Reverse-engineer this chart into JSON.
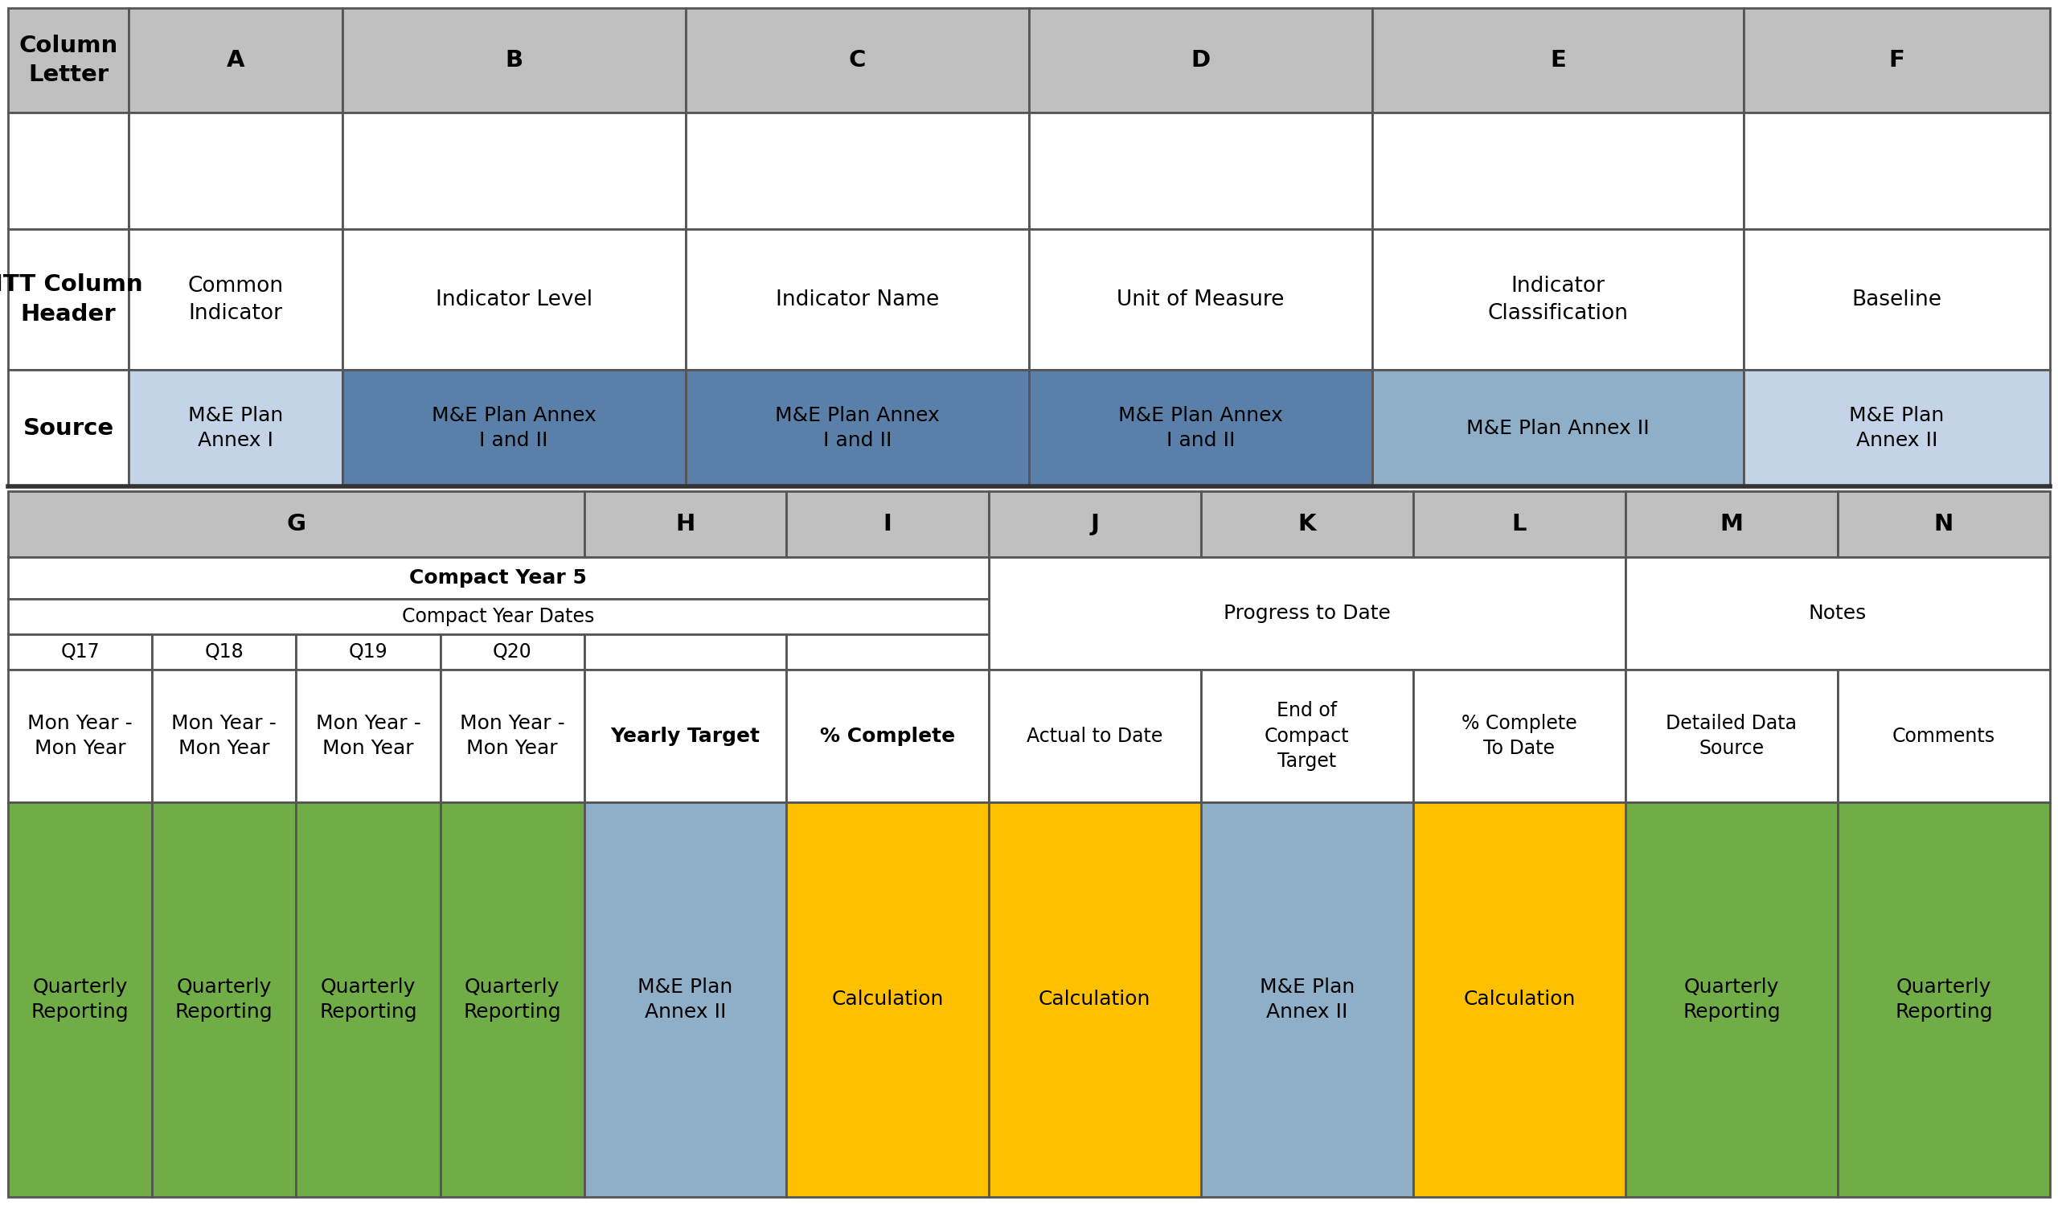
{
  "bg_color": "#ffffff",
  "gray_header_bg": "#c0c0c0",
  "white_bg": "#ffffff",
  "light_blue_bg": "#c5d3e8",
  "medium_blue_bg": "#8faec8",
  "dark_blue_bg": "#5a7fa8",
  "green_bg": "#70ad47",
  "yellow_bg": "#ffc000",
  "col_letters_row": [
    "Column\nLetter",
    "A",
    "B",
    "C",
    "D",
    "E",
    "F"
  ],
  "itt_header_row": [
    "ITT Column\nHeader",
    "Common\nIndicator",
    "Indicator Level",
    "Indicator Name",
    "Unit of Measure",
    "Indicator\nClassification",
    "Baseline"
  ],
  "source_row_text": [
    "Source",
    "M&E Plan\nAnnex I",
    "M&E Plan Annex\nI and II",
    "M&E Plan Annex\nI and II",
    "M&E Plan Annex\nI and II",
    "M&E Plan Annex II",
    "M&E Plan\nAnnex II"
  ],
  "source_cell_colors": [
    "#ffffff",
    "#c5d3e8",
    "#5a7fa8",
    "#5a7fa8",
    "#5a7fa8",
    "#8faec8",
    "#c5d3e8"
  ],
  "compact_year5_text": "Compact Year 5",
  "compact_year_dates_text": "Compact Year Dates",
  "quarters": [
    "Q17",
    "Q18",
    "Q19",
    "Q20"
  ],
  "mon_year_text": "Mon Year -\nMon Year",
  "yearly_target_text": "Yearly Target",
  "pct_complete_text": "% Complete",
  "actual_to_date_text": "Actual to Date",
  "end_compact_text": "End of\nCompact\nTarget",
  "pct_complete_to_date_text": "% Complete\nTo Date",
  "detailed_data_text": "Detailed Data\nSource",
  "comments_text": "Comments",
  "progress_to_date_text": "Progress to Date",
  "notes_text": "Notes",
  "bottom_source_row": [
    "Quarterly\nReporting",
    "Quarterly\nReporting",
    "Quarterly\nReporting",
    "Quarterly\nReporting",
    "M&E Plan\nAnnex II",
    "Calculation",
    "Calculation",
    "M&E Plan\nAnnex II",
    "Calculation",
    "Quarterly\nReporting",
    "Quarterly\nReporting"
  ],
  "bottom_source_colors": [
    "#70ad47",
    "#70ad47",
    "#70ad47",
    "#70ad47",
    "#8faec8",
    "#ffc000",
    "#ffc000",
    "#8faec8",
    "#ffc000",
    "#70ad47",
    "#70ad47"
  ]
}
